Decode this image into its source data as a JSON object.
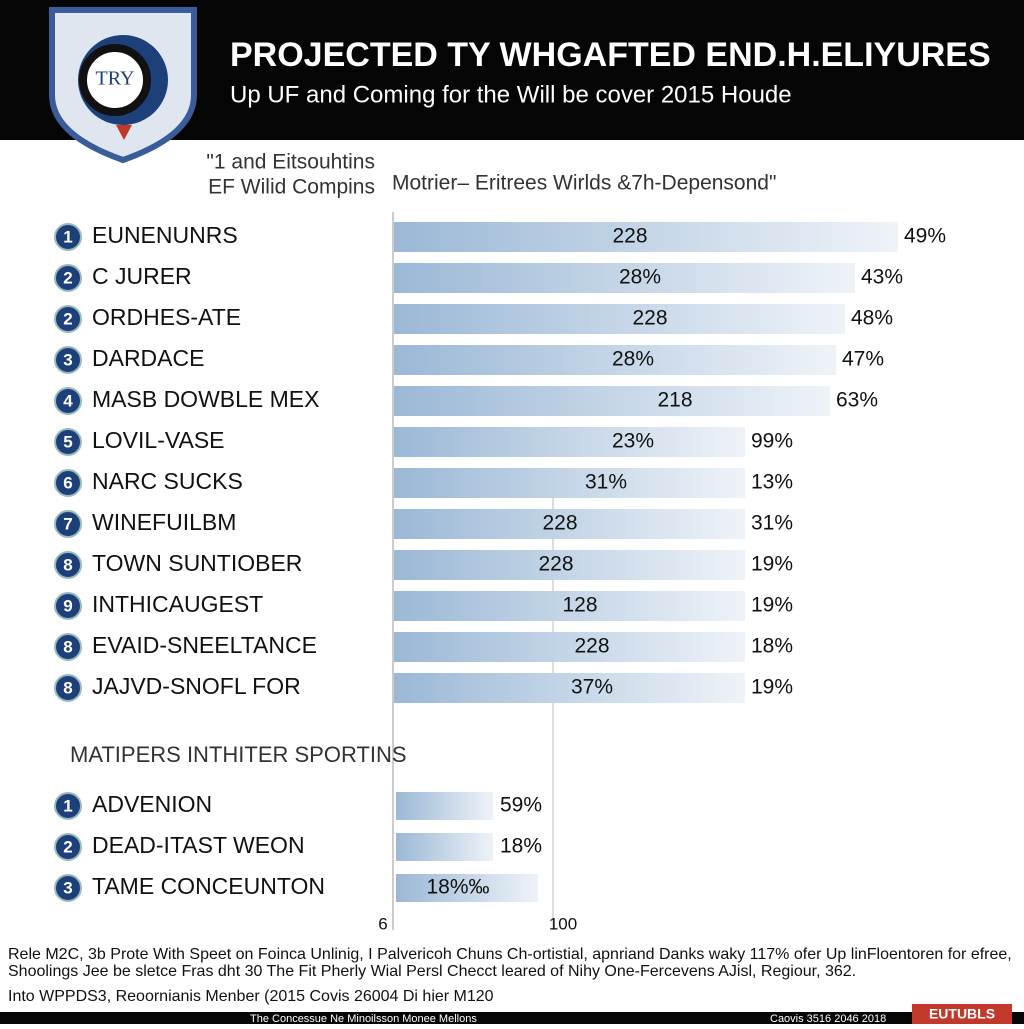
{
  "header": {
    "title": "PROJECTED TY WHGAFTED END.H.ELIYURES",
    "subtitle": "Up UF and Coming for the Will be cover 2015 Houde",
    "logo_text": "TRY"
  },
  "column_headers": {
    "left": [
      "\"1 and Eitsouhtins",
      "EF Wilid Compins"
    ],
    "right": "Motrier– Eritrees Wirlds &7h-Depensond\""
  },
  "rows": [
    {
      "rank": "1",
      "name": "EUNENUNRS",
      "bar_label": "228",
      "pct": "49%"
    },
    {
      "rank": "2",
      "name": "C JURER",
      "bar_label": "28%",
      "pct": "43%"
    },
    {
      "rank": "2",
      "name": "ORDHES-ATE",
      "bar_label": "228",
      "pct": "48%"
    },
    {
      "rank": "3",
      "name": "DARDACE",
      "bar_label": "28%",
      "pct": "47%"
    },
    {
      "rank": "4",
      "name": "MASB DOWBLE MEX",
      "bar_label": "218",
      "pct": "63%"
    },
    {
      "rank": "5",
      "name": "LOVIL-VASE",
      "bar_label": "23%",
      "pct": "99%"
    },
    {
      "rank": "6",
      "name": "NARC SUCKS",
      "bar_label": "31%",
      "pct": "13%"
    },
    {
      "rank": "7",
      "name": "WINEFUILBM",
      "bar_label": "228",
      "pct": "31%"
    },
    {
      "rank": "8",
      "name": "TOWN SUNTIOBER",
      "bar_label": "228",
      "pct": "19%"
    },
    {
      "rank": "9",
      "name": "INTHICAUGEST",
      "bar_label": "128",
      "pct": "19%"
    },
    {
      "rank": "8",
      "name": "EVAID-SNEELTANCE",
      "bar_label": "228",
      "pct": "18%"
    },
    {
      "rank": "8",
      "name": "JAJVD-SNOFL FOR",
      "bar_label": "37%",
      "pct": "19%"
    }
  ],
  "section2": {
    "title": "MATIPERS INTHITER SPORTINS",
    "rows": [
      {
        "rank": "1",
        "name": "ADVENION",
        "pct": "59%"
      },
      {
        "rank": "2",
        "name": "DEAD-ITAST WEON",
        "pct": "18%"
      },
      {
        "rank": "3",
        "name": "TAME CONCEUNTON",
        "pct": "18%‰"
      }
    ]
  },
  "axis_labels": [
    "6",
    "100"
  ],
  "footer": [
    "Rele M2C, 3b Prote With Speet on Foinca Unlinig, I Palvericoh Chuns Ch-ortistial, apnriand Danks waky 117% ofer Up linFloentoren for efree,",
    "Shoolings Jee be sletce Fras dht 30 The Fit Pherly Wial Persl Checct leared of Nihy One-Fercevens AJisl, Regiour, 362.",
    "Into WPPDS3, Reoornianis Menber (2015 Covis 26004 Di hier M120"
  ],
  "bottom_bar": {
    "left": "The Concessue Ne Minoilsson Monee Mellons",
    "right": "Caovis 3516 2046 2018",
    "badge": "EUTUBLS"
  }
}
